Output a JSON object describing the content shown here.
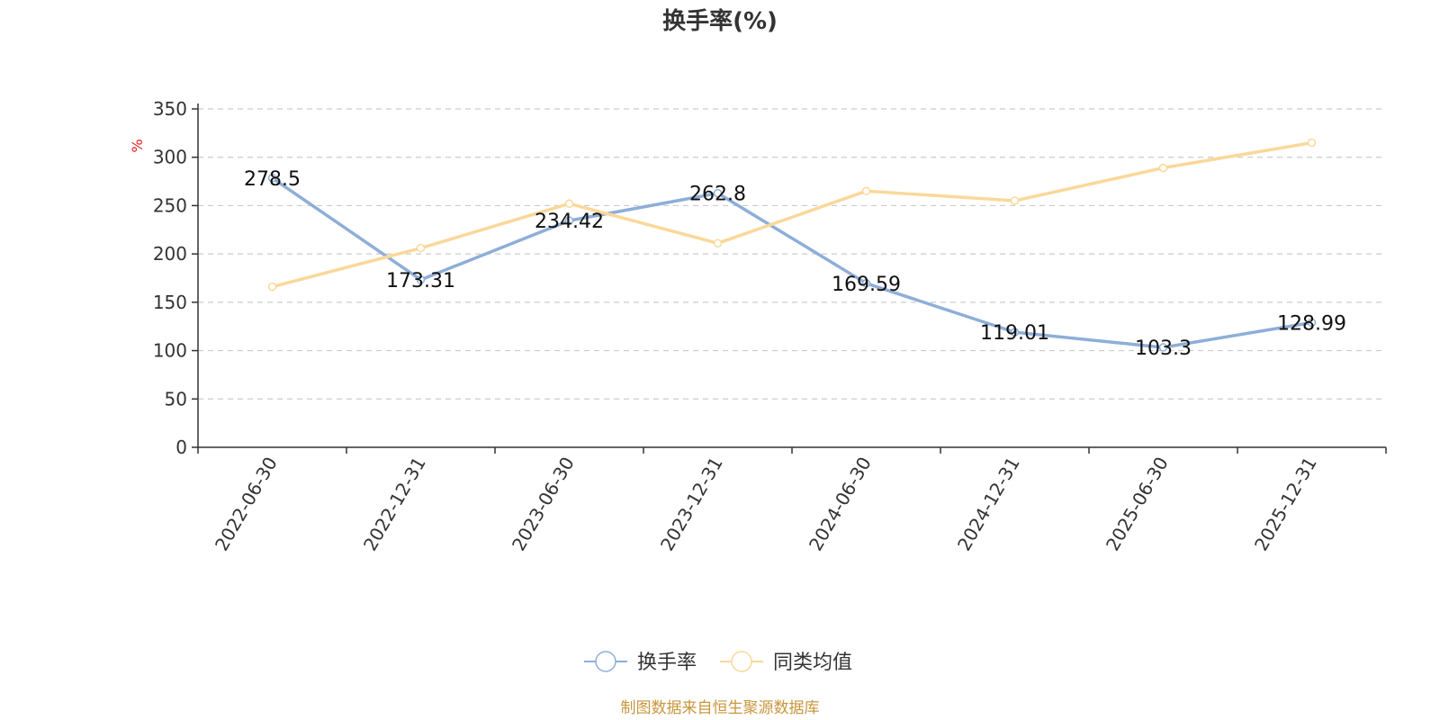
{
  "chart_data": {
    "type": "line",
    "title": "换手率(%)",
    "ylabel": "%",
    "ylim": [
      0,
      350
    ],
    "yticks": [
      0,
      50,
      100,
      150,
      200,
      250,
      300,
      350
    ],
    "categories": [
      "2022-06-30",
      "2022-12-31",
      "2023-06-30",
      "2023-12-31",
      "2024-06-30",
      "2024-12-31",
      "2025-06-30",
      "2025-12-31"
    ],
    "grid": true,
    "legend_position": "bottom",
    "series": [
      {
        "name": "换手率",
        "color": "#8eaed8",
        "values": [
          278.5,
          173.31,
          234.42,
          262.8,
          169.59,
          119.01,
          103.3,
          128.99
        ],
        "labels": [
          "278.5",
          "173.31",
          "234.42",
          "262.8",
          "169.59",
          "119.01",
          "103.3",
          "128.99"
        ]
      },
      {
        "name": "同类均值",
        "color": "#fad89a",
        "values": [
          166,
          206,
          252,
          211,
          265,
          255,
          289,
          315
        ]
      }
    ]
  },
  "footer": {
    "source": "制图数据来自恒生聚源数据库"
  },
  "colors": {
    "unit": "#e02020",
    "source": "#c8963e",
    "axis": "#333333",
    "grid": "#cccccc"
  }
}
